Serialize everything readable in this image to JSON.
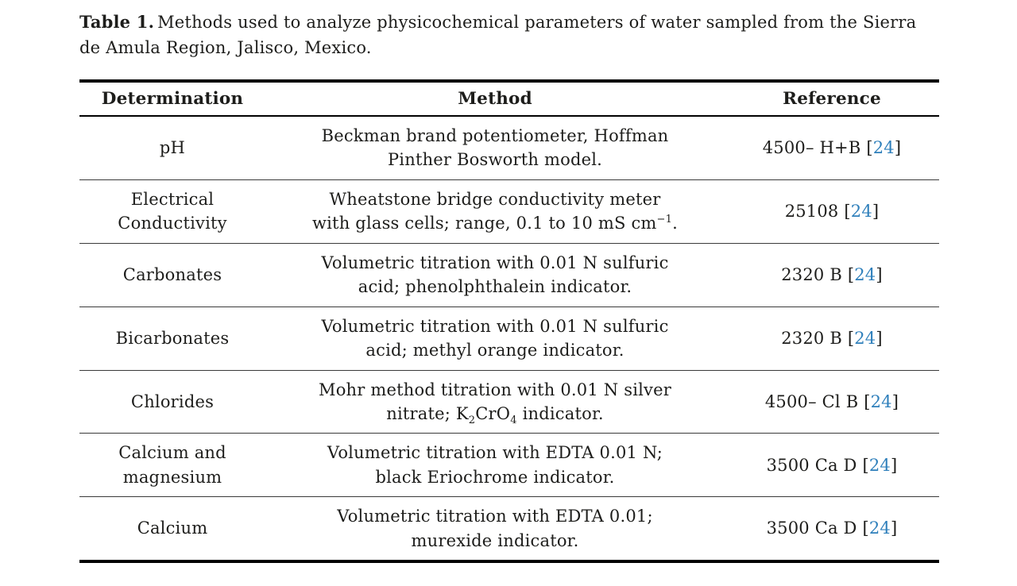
{
  "colors": {
    "text": "#1d1d1b",
    "citation": "#2e7fbb"
  },
  "caption": {
    "label": "Table 1.",
    "text": "Methods used to analyze physicochemical parameters of water sampled from the Sierra de Amula Region, Jalisco, Mexico."
  },
  "table": {
    "headers": [
      "Determination",
      "Method",
      "Reference"
    ],
    "rows": [
      {
        "determination_lines": [
          "pH"
        ],
        "method_lines": [
          [
            {
              "t": "Beckman brand potentiometer, Hoffman"
            }
          ],
          [
            {
              "t": "Pinther Bosworth model."
            }
          ]
        ],
        "reference": {
          "text": "4500– H+B",
          "citation": "24"
        }
      },
      {
        "determination_lines": [
          "Electrical",
          "Conductivity"
        ],
        "method_lines": [
          [
            {
              "t": "Wheatstone bridge conductivity meter"
            }
          ],
          [
            {
              "t": "with glass cells; range, 0.1 to 10 mS cm"
            },
            {
              "t": "−1",
              "style": "sup"
            },
            {
              "t": "."
            }
          ]
        ],
        "reference": {
          "text": "25108",
          "citation": "24"
        }
      },
      {
        "determination_lines": [
          "Carbonates"
        ],
        "method_lines": [
          [
            {
              "t": "Volumetric titration with 0.01 N sulfuric"
            }
          ],
          [
            {
              "t": "acid; phenolphthalein indicator."
            }
          ]
        ],
        "reference": {
          "text": "2320 B",
          "citation": "24"
        }
      },
      {
        "determination_lines": [
          "Bicarbonates"
        ],
        "method_lines": [
          [
            {
              "t": "Volumetric titration with 0.01 N sulfuric"
            }
          ],
          [
            {
              "t": "acid; methyl orange indicator."
            }
          ]
        ],
        "reference": {
          "text": "2320 B",
          "citation": "24"
        }
      },
      {
        "determination_lines": [
          "Chlorides"
        ],
        "method_lines": [
          [
            {
              "t": "Mohr method titration with 0.01 N silver"
            }
          ],
          [
            {
              "t": "nitrate; K"
            },
            {
              "t": "2",
              "style": "sub"
            },
            {
              "t": "CrO"
            },
            {
              "t": "4",
              "style": "sub"
            },
            {
              "t": " indicator."
            }
          ]
        ],
        "reference": {
          "text": "4500– Cl B",
          "citation": "24"
        }
      },
      {
        "determination_lines": [
          "Calcium and",
          "magnesium"
        ],
        "method_lines": [
          [
            {
              "t": "Volumetric titration with EDTA 0.01 N;"
            }
          ],
          [
            {
              "t": "black Eriochrome indicator."
            }
          ]
        ],
        "reference": {
          "text": "3500 Ca D",
          "citation": "24"
        }
      },
      {
        "determination_lines": [
          "Calcium"
        ],
        "method_lines": [
          [
            {
              "t": "Volumetric titration with EDTA 0.01;"
            }
          ],
          [
            {
              "t": "murexide indicator."
            }
          ]
        ],
        "reference": {
          "text": "3500 Ca D",
          "citation": "24"
        }
      }
    ]
  }
}
